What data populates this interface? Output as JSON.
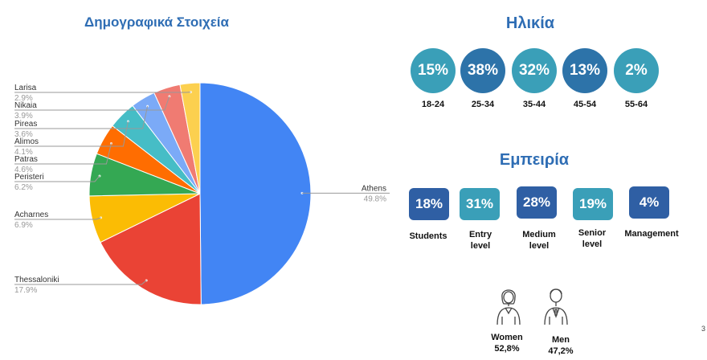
{
  "title": "Δημογραφικά Στοιχεία",
  "chart_data": {
    "type": "pie",
    "slices": [
      {
        "label": "Athens",
        "value": 49.8,
        "display": "49.8%",
        "color": "#4285f4"
      },
      {
        "label": "Thessaloniki",
        "value": 17.9,
        "display": "17.9%",
        "color": "#ea4335"
      },
      {
        "label": "Acharnes",
        "value": 6.9,
        "display": "6.9%",
        "color": "#fbbc04"
      },
      {
        "label": "Peristeri",
        "value": 6.2,
        "display": "6.2%",
        "color": "#34a853"
      },
      {
        "label": "Patras",
        "value": 4.6,
        "display": "4.6%",
        "color": "#ff6d01"
      },
      {
        "label": "Alimos",
        "value": 4.1,
        "display": "4.1%",
        "color": "#46bdc6"
      },
      {
        "label": "Pireas",
        "value": 3.6,
        "display": "3.6%",
        "color": "#7baaf7"
      },
      {
        "label": "Nikaia",
        "value": 3.9,
        "display": "3.9%",
        "color": "#f07b72"
      },
      {
        "label": "Larisa",
        "value": 2.9,
        "display": "2.9%",
        "color": "#fcd04f"
      }
    ]
  },
  "age": {
    "title": "Ηλικία",
    "items": [
      {
        "value": "15%",
        "label": "18-24"
      },
      {
        "value": "38%",
        "label": "25-34"
      },
      {
        "value": "32%",
        "label": "35-44"
      },
      {
        "value": "13%",
        "label": "45-54"
      },
      {
        "value": "2%",
        "label": "55-64"
      }
    ]
  },
  "experience": {
    "title": "Εμπειρία",
    "items": [
      {
        "value": "18%",
        "label": "Students"
      },
      {
        "value": "31%",
        "label": "Entry level"
      },
      {
        "value": "28%",
        "label": "Medium level"
      },
      {
        "value": "19%",
        "label": "Senior level"
      },
      {
        "value": "4%",
        "label": "Management"
      }
    ]
  },
  "gender": {
    "women": {
      "label": "Women",
      "value": "52,8%",
      "icon": "woman-icon"
    },
    "men": {
      "label": "Men",
      "value": "47,2%",
      "icon": "man-icon"
    }
  },
  "page_number": "3"
}
